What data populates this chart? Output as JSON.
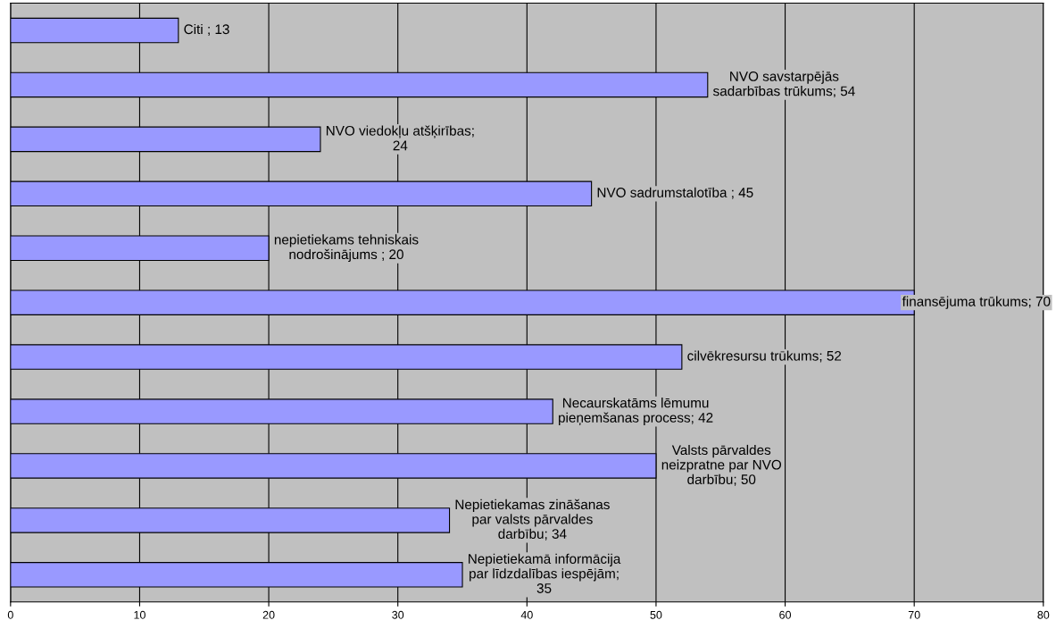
{
  "chart_data": {
    "type": "bar",
    "orientation": "horizontal",
    "categories": [
      null,
      null,
      null,
      null,
      null,
      null,
      null,
      null,
      null,
      null,
      null
    ],
    "values": [
      13,
      54,
      24,
      45,
      20,
      70,
      52,
      42,
      50,
      34,
      35
    ],
    "value_labels": [
      "Citi ; 13",
      "NVO savstarpējās\nsadarbības trūkums; 54",
      "NVO viedokļu atšķirības;\n24",
      "NVO sadrumstalotība ; 45",
      "nepietiekams tehniskais\nnodrošinājums ; 20",
      "finansējuma trūkums; 70",
      "cilvēkresursu trūkums; 52",
      "Necaurskatāms lēmumu\npieņemšanas process; 42",
      "Valsts pārvaldes\nneizpratne par NVO\ndarbību; 50",
      "Nepietiekamas zināšanas\npar valsts pārvaldes\ndarbību; 34",
      "Nepietiekamā informācija\npar līdzdalības iespējām;\n35"
    ],
    "color": "#9999ff",
    "xlim": [
      0,
      80
    ],
    "xticks": [
      0,
      10,
      20,
      30,
      40,
      50,
      60,
      70,
      80
    ],
    "grid": "x",
    "tick_labels": "x"
  }
}
